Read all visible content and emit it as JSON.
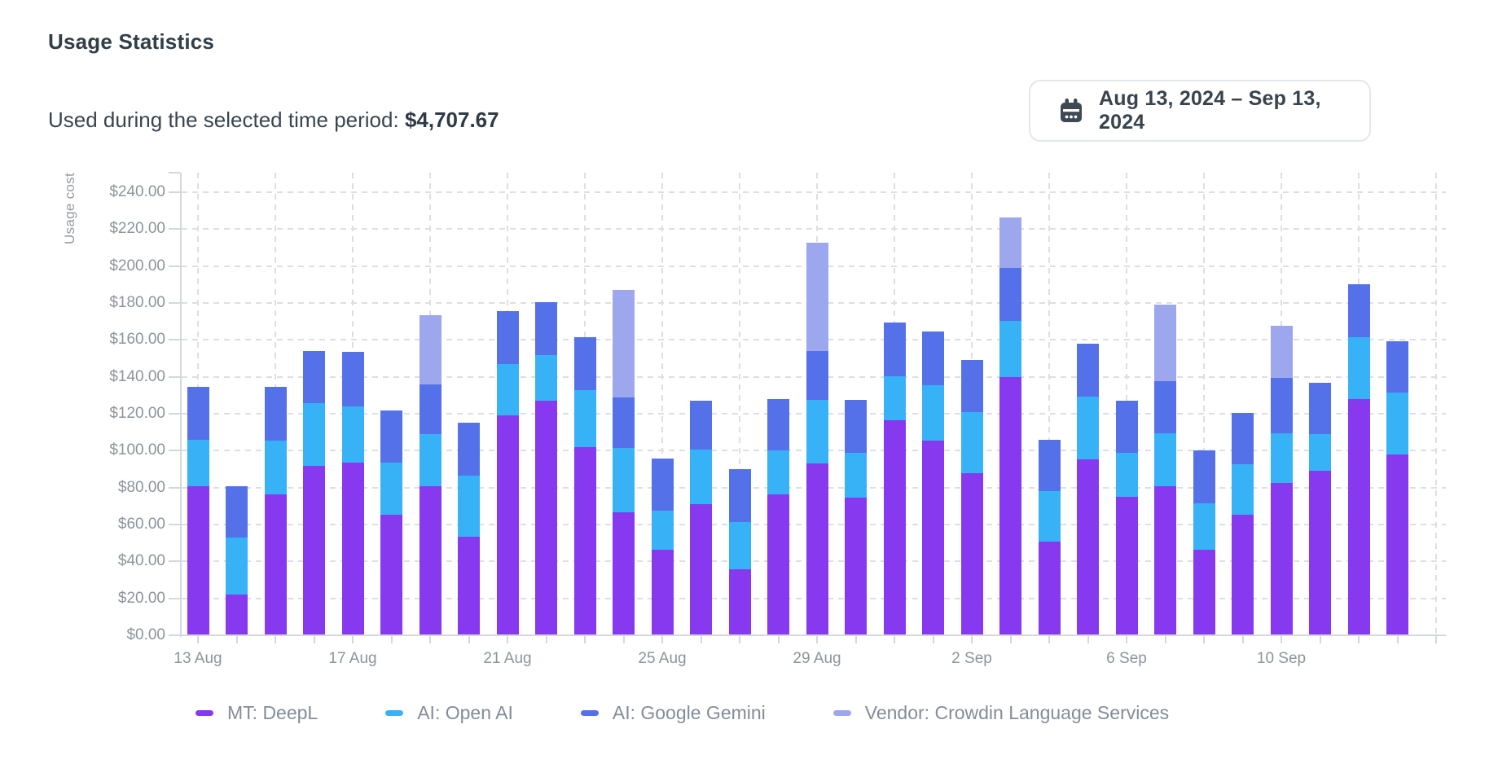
{
  "header": {
    "title": "Usage Statistics",
    "subtitle_label": "Used during the selected time period:",
    "subtitle_value": "$4,707.67"
  },
  "date_picker": {
    "label": "Aug 13, 2024 – Sep 13, 2024",
    "icon": "calendar-icon"
  },
  "chart_data": {
    "type": "bar",
    "stacked": true,
    "ylabel": "Usage cost",
    "ylim": [
      0,
      250
    ],
    "ytick_step": 20,
    "grid": true,
    "legend_position": "bottom",
    "yticks": [
      "$0.00",
      "$20.00",
      "$40.00",
      "$60.00",
      "$80.00",
      "$100.00",
      "$120.00",
      "$140.00",
      "$160.00",
      "$180.00",
      "$200.00",
      "$220.00",
      "$240.00"
    ],
    "categories": [
      "13 Aug",
      "14 Aug",
      "15 Aug",
      "16 Aug",
      "17 Aug",
      "18 Aug",
      "19 Aug",
      "20 Aug",
      "21 Aug",
      "22 Aug",
      "23 Aug",
      "24 Aug",
      "25 Aug",
      "26 Aug",
      "27 Aug",
      "28 Aug",
      "29 Aug",
      "30 Aug",
      "31 Aug",
      "1 Sep",
      "2 Sep",
      "3 Sep",
      "4 Sep",
      "5 Sep",
      "6 Sep",
      "7 Sep",
      "8 Sep",
      "9 Sep",
      "10 Sep",
      "11 Sep",
      "12 Sep",
      "13 Sep"
    ],
    "xticklabels": [
      "13 Aug",
      "17 Aug",
      "21 Aug",
      "25 Aug",
      "29 Aug",
      "2 Sep",
      "6 Sep",
      "10 Sep"
    ],
    "xticklabel_indices": [
      0,
      4,
      8,
      12,
      16,
      20,
      24,
      28
    ],
    "series": [
      {
        "name": "MT: DeepL",
        "color": "#8639ee",
        "values": [
          80.5,
          21.7,
          76,
          91.5,
          93,
          65,
          80.5,
          53,
          118.5,
          126.5,
          101.5,
          66,
          46,
          70.5,
          35.5,
          76,
          92.5,
          74,
          116,
          105,
          87.5,
          139.5,
          50.5,
          95,
          74.5,
          80.5,
          46,
          65,
          82,
          88.5,
          127.5,
          97.5
        ]
      },
      {
        "name": "AI: Open AI",
        "color": "#38b2f6",
        "values": [
          25,
          30.6,
          29,
          34,
          30.5,
          28,
          28,
          33,
          28,
          25,
          31,
          35,
          21,
          29.5,
          25.5,
          23.5,
          34.5,
          24.5,
          24,
          30,
          33,
          30.5,
          27,
          34,
          24,
          28.5,
          25,
          27,
          27,
          20,
          33.5,
          33.5
        ]
      },
      {
        "name": "AI: Google Gemini",
        "color": "#5571ea",
        "values": [
          28.5,
          27.8,
          29,
          28,
          29.5,
          28.5,
          27,
          28.5,
          28.5,
          28.5,
          28.5,
          27.5,
          28.5,
          26.5,
          28.5,
          28,
          26.5,
          28.5,
          29,
          29,
          28,
          28.5,
          28,
          28.5,
          28,
          28,
          28.5,
          28,
          30,
          28,
          28.5,
          28
        ]
      },
      {
        "name": "Vendor: Crowdin Language Services",
        "color": "#9da7ed",
        "values": [
          0,
          0,
          0,
          0,
          0,
          0,
          37.5,
          0,
          0,
          0,
          0,
          58,
          0,
          0,
          0,
          0,
          58.5,
          0,
          0,
          0,
          0,
          27.5,
          0,
          0,
          0,
          41.5,
          0,
          0,
          28,
          0,
          0,
          0
        ]
      }
    ]
  }
}
